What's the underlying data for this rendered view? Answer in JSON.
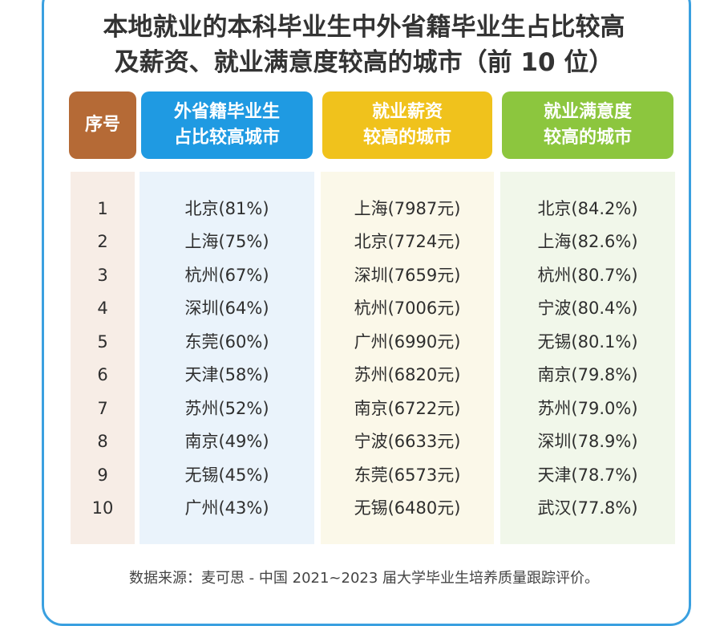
{
  "title": {
    "line1": "本地就业的本科毕业生中外省籍毕业生占比较高",
    "line2": "及薪资、就业满意度较高的城市（前 10 位）"
  },
  "headers": {
    "index": "序号",
    "col1": [
      "外省籍毕业生",
      "占比较高城市"
    ],
    "col2": [
      "就业薪资",
      "较高的城市"
    ],
    "col3": [
      "就业满意度",
      "较高的城市"
    ]
  },
  "rows": [
    {
      "index": "1",
      "col1": "北京(81%)",
      "col2": "上海(7987元)",
      "col3": "北京(84.2%)"
    },
    {
      "index": "2",
      "col1": "上海(75%)",
      "col2": "北京(7724元)",
      "col3": "上海(82.6%)"
    },
    {
      "index": "3",
      "col1": "杭州(67%)",
      "col2": "深圳(7659元)",
      "col3": "杭州(80.7%)"
    },
    {
      "index": "4",
      "col1": "深圳(64%)",
      "col2": "杭州(7006元)",
      "col3": "宁波(80.4%)"
    },
    {
      "index": "5",
      "col1": "东莞(60%)",
      "col2": "广州(6990元)",
      "col3": "无锡(80.1%)"
    },
    {
      "index": "6",
      "col1": "天津(58%)",
      "col2": "苏州(6820元)",
      "col3": "南京(79.8%)"
    },
    {
      "index": "7",
      "col1": "苏州(52%)",
      "col2": "南京(6722元)",
      "col3": "苏州(79.0%)"
    },
    {
      "index": "8",
      "col1": "南京(49%)",
      "col2": "宁波(6633元)",
      "col3": "深圳(78.9%)"
    },
    {
      "index": "9",
      "col1": "无锡(45%)",
      "col2": "东莞(6573元)",
      "col3": "天津(78.7%)"
    },
    {
      "index": "10",
      "col1": "广州(43%)",
      "col2": "无锡(6480元)",
      "col3": "武汉(77.8%)"
    }
  ],
  "source": "数据来源：麦可思 - 中国 2021~2023 届大学毕业生培养质量跟踪评价。"
}
